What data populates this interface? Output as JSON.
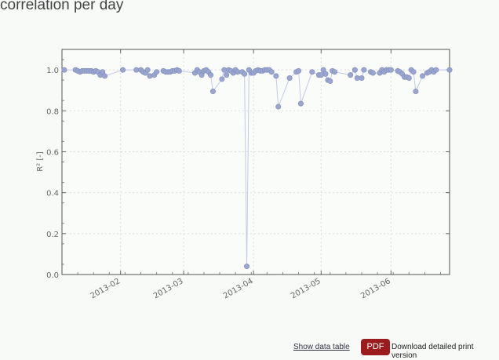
{
  "title": "correlation per day",
  "footer": {
    "show_table": "Show data table",
    "pdf_label": "PDF",
    "pdf_text": "Download detailed print version",
    "pdf_color": "#9b1c1c"
  },
  "chart_data": {
    "type": "line",
    "title": "correlation per day",
    "xlabel": "",
    "ylabel": "R² [-]",
    "xlim": [
      "2013-01-06",
      "2013-06-27"
    ],
    "ylim": [
      0,
      1.1
    ],
    "yticks": [
      "0.0",
      "0.2",
      "0.4",
      "0.6",
      "0.8",
      "1.0"
    ],
    "xticks": [
      "2013-02",
      "2013-03",
      "2013-04",
      "2013-05",
      "2013-06"
    ],
    "grid": true,
    "marker_color": "#9aa6cf",
    "line_color": "#c3c9e6",
    "series": [
      {
        "x": [
          "2013-01-07",
          "2013-01-12",
          "2013-01-13",
          "2013-01-14",
          "2013-01-15",
          "2013-01-16",
          "2013-01-17",
          "2013-01-18",
          "2013-01-19",
          "2013-01-20",
          "2013-01-21",
          "2013-01-22",
          "2013-01-23",
          "2013-01-24",
          "2013-01-25",
          "2013-02-02",
          "2013-02-08",
          "2013-02-10",
          "2013-02-11",
          "2013-02-12",
          "2013-02-13",
          "2013-02-14",
          "2013-02-16",
          "2013-02-17",
          "2013-02-20",
          "2013-02-21",
          "2013-02-22",
          "2013-02-23",
          "2013-02-24",
          "2013-02-25",
          "2013-02-26",
          "2013-02-27",
          "2013-03-06",
          "2013-03-07",
          "2013-03-08",
          "2013-03-09",
          "2013-03-10",
          "2013-03-11",
          "2013-03-12",
          "2013-03-13",
          "2013-03-14",
          "2013-03-18",
          "2013-03-19",
          "2013-03-20",
          "2013-03-21",
          "2013-03-22",
          "2013-03-23",
          "2013-03-24",
          "2013-03-25",
          "2013-03-27",
          "2013-03-28",
          "2013-03-29",
          "2013-03-30",
          "2013-03-31",
          "2013-04-01",
          "2013-04-02",
          "2013-04-03",
          "2013-04-04",
          "2013-04-05",
          "2013-04-06",
          "2013-04-07",
          "2013-04-08",
          "2013-04-09",
          "2013-04-11",
          "2013-04-12",
          "2013-04-17",
          "2013-04-20",
          "2013-04-21",
          "2013-04-22",
          "2013-04-27",
          "2013-04-30",
          "2013-05-01",
          "2013-05-02",
          "2013-05-03",
          "2013-05-04",
          "2013-05-05",
          "2013-05-06",
          "2013-05-07",
          "2013-05-14",
          "2013-05-16",
          "2013-05-17",
          "2013-05-19",
          "2013-05-20",
          "2013-05-23",
          "2013-05-24",
          "2013-05-27",
          "2013-05-28",
          "2013-05-29",
          "2013-05-30",
          "2013-05-31",
          "2013-06-01",
          "2013-06-04",
          "2013-06-05",
          "2013-06-06",
          "2013-06-07",
          "2013-06-08",
          "2013-06-09",
          "2013-06-10",
          "2013-06-11",
          "2013-06-12",
          "2013-06-15",
          "2013-06-17",
          "2013-06-18",
          "2013-06-19",
          "2013-06-20",
          "2013-06-21",
          "2013-06-27"
        ],
        "y": [
          1.0,
          1.0,
          0.995,
          0.99,
          0.995,
          0.995,
          0.995,
          0.995,
          0.995,
          0.99,
          0.995,
          0.99,
          0.975,
          0.99,
          0.97,
          1.0,
          1.0,
          1.0,
          0.99,
          0.985,
          1.0,
          0.97,
          0.975,
          0.99,
          0.995,
          0.99,
          0.99,
          0.99,
          0.995,
          0.995,
          1.0,
          0.995,
          0.985,
          1.0,
          0.99,
          0.975,
          0.995,
          1.0,
          0.99,
          0.975,
          0.895,
          0.955,
          1.0,
          0.975,
          1.0,
          0.995,
          0.985,
          1.0,
          0.99,
          0.99,
          0.98,
          0.04,
          1.0,
          0.985,
          0.985,
          0.995,
          1.0,
          0.995,
          0.995,
          1.0,
          1.0,
          1.0,
          0.99,
          0.97,
          0.82,
          0.96,
          0.99,
          0.995,
          0.835,
          0.99,
          0.975,
          0.975,
          1.0,
          0.98,
          0.95,
          0.945,
          0.995,
          0.99,
          0.975,
          1.0,
          0.96,
          0.96,
          1.0,
          0.99,
          0.985,
          0.985,
          1.0,
          0.99,
          1.0,
          1.0,
          1.0,
          0.995,
          0.99,
          0.98,
          0.965,
          0.965,
          0.96,
          1.0,
          0.99,
          0.895,
          0.97,
          0.985,
          0.99,
          1.0,
          0.99,
          1.0,
          1.0
        ]
      }
    ]
  }
}
